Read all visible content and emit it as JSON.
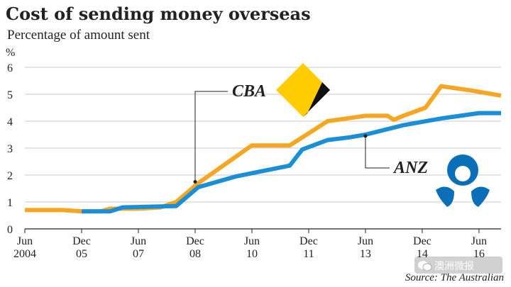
{
  "title": "Cost of sending money overseas",
  "subtitle": "Percentage of amount sent",
  "source": "Source: The Australian",
  "watermark_text": "澳洲微报",
  "colors": {
    "cba": "#F5A623",
    "anz": "#1B8FD6",
    "anz_logo": "#0B6FB8",
    "grid": "#C8C8C8",
    "axis": "#222222"
  },
  "icons": {
    "cba_logo": "cba-diamond-logo",
    "anz_logo": "anz-logo",
    "watermark": "wechat-icon"
  },
  "chart_data": {
    "type": "line",
    "title": "Cost of sending money overseas",
    "subtitle": "Percentage of amount sent",
    "ylabel": "%",
    "ylim": [
      0,
      6
    ],
    "yticks": [
      0,
      1,
      2,
      3,
      4,
      5,
      6
    ],
    "xlim": [
      "2004-06",
      "2017-01"
    ],
    "x_ticks": [
      {
        "date": "2004-06",
        "month": "Jun",
        "year": "2004"
      },
      {
        "date": "2005-12",
        "month": "Dec",
        "year": "05"
      },
      {
        "date": "2007-06",
        "month": "Jun",
        "year": "07"
      },
      {
        "date": "2008-12",
        "month": "Dec",
        "year": "08"
      },
      {
        "date": "2010-06",
        "month": "Jun",
        "year": "10"
      },
      {
        "date": "2011-12",
        "month": "Dec",
        "year": "11"
      },
      {
        "date": "2013-06",
        "month": "Jun",
        "year": "13"
      },
      {
        "date": "2014-12",
        "month": "Dec",
        "year": "14"
      },
      {
        "date": "2016-06",
        "month": "Jun",
        "year": "16"
      }
    ],
    "grid": true,
    "legend": "inline labels",
    "series": [
      {
        "name": "CBA",
        "color": "#F5A623",
        "points": [
          {
            "x": "2004-06",
            "y": 0.7
          },
          {
            "x": "2005-06",
            "y": 0.7
          },
          {
            "x": "2005-12",
            "y": 0.65
          },
          {
            "x": "2006-06",
            "y": 0.65
          },
          {
            "x": "2006-09",
            "y": 0.75
          },
          {
            "x": "2007-06",
            "y": 0.75
          },
          {
            "x": "2008-01",
            "y": 0.8
          },
          {
            "x": "2008-06",
            "y": 1.0
          },
          {
            "x": "2009-01",
            "y": 1.7
          },
          {
            "x": "2010-06",
            "y": 3.1
          },
          {
            "x": "2011-06",
            "y": 3.1
          },
          {
            "x": "2012-06",
            "y": 4.0
          },
          {
            "x": "2013-06",
            "y": 4.2
          },
          {
            "x": "2014-01",
            "y": 4.2
          },
          {
            "x": "2014-03",
            "y": 4.05
          },
          {
            "x": "2014-06",
            "y": 4.2
          },
          {
            "x": "2015-01",
            "y": 4.5
          },
          {
            "x": "2015-06",
            "y": 5.3
          },
          {
            "x": "2016-03",
            "y": 5.15
          },
          {
            "x": "2017-01",
            "y": 4.95
          }
        ]
      },
      {
        "name": "ANZ",
        "color": "#1B8FD6",
        "points": [
          {
            "x": "2005-12",
            "y": 0.65
          },
          {
            "x": "2006-09",
            "y": 0.65
          },
          {
            "x": "2007-01",
            "y": 0.8
          },
          {
            "x": "2008-06",
            "y": 0.85
          },
          {
            "x": "2009-01",
            "y": 1.55
          },
          {
            "x": "2010-01",
            "y": 1.95
          },
          {
            "x": "2011-06",
            "y": 2.35
          },
          {
            "x": "2011-10",
            "y": 2.95
          },
          {
            "x": "2012-06",
            "y": 3.3
          },
          {
            "x": "2013-01",
            "y": 3.4
          },
          {
            "x": "2013-06",
            "y": 3.5
          },
          {
            "x": "2014-06",
            "y": 3.85
          },
          {
            "x": "2015-06",
            "y": 4.1
          },
          {
            "x": "2016-06",
            "y": 4.3
          },
          {
            "x": "2017-01",
            "y": 4.3
          }
        ]
      }
    ],
    "annotations": [
      {
        "text": "CBA",
        "series": "CBA",
        "x": "2008-12",
        "y": 1.75
      },
      {
        "text": "ANZ",
        "series": "ANZ",
        "x": "2013-06",
        "y": 3.45
      }
    ]
  }
}
